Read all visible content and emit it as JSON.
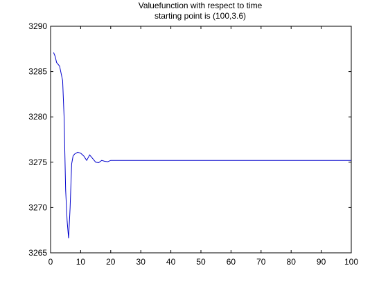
{
  "chart_data": {
    "type": "line",
    "title_lines": [
      "Valuefunction with respect to time",
      "starting point is (100,3.6)"
    ],
    "xlabel": "",
    "ylabel": "",
    "xlim": [
      0,
      100
    ],
    "ylim": [
      3265,
      3290
    ],
    "x_ticks": [
      0,
      10,
      20,
      30,
      40,
      50,
      60,
      70,
      80,
      90,
      100
    ],
    "y_ticks": [
      3265,
      3270,
      3275,
      3280,
      3285,
      3290
    ],
    "grid": false,
    "legend": "none",
    "series": [
      {
        "color": "#0000cc",
        "x": [
          1,
          1.5,
          2,
          3,
          4,
          4.5,
          5,
          5.5,
          6,
          6.5,
          7,
          7.5,
          8,
          9,
          10,
          11,
          12,
          13,
          14,
          15,
          16,
          17,
          18,
          19,
          20,
          25,
          30,
          40,
          50,
          60,
          70,
          80,
          90,
          100
        ],
        "y": [
          3287.1,
          3286.7,
          3286.0,
          3285.6,
          3284.0,
          3280.0,
          3272.0,
          3268.5,
          3266.6,
          3270.0,
          3274.8,
          3275.7,
          3275.9,
          3276.1,
          3276.0,
          3275.7,
          3275.2,
          3275.8,
          3275.4,
          3275.0,
          3274.95,
          3275.2,
          3275.1,
          3275.05,
          3275.2,
          3275.2,
          3275.2,
          3275.2,
          3275.2,
          3275.2,
          3275.2,
          3275.2,
          3275.2,
          3275.2
        ]
      }
    ]
  }
}
